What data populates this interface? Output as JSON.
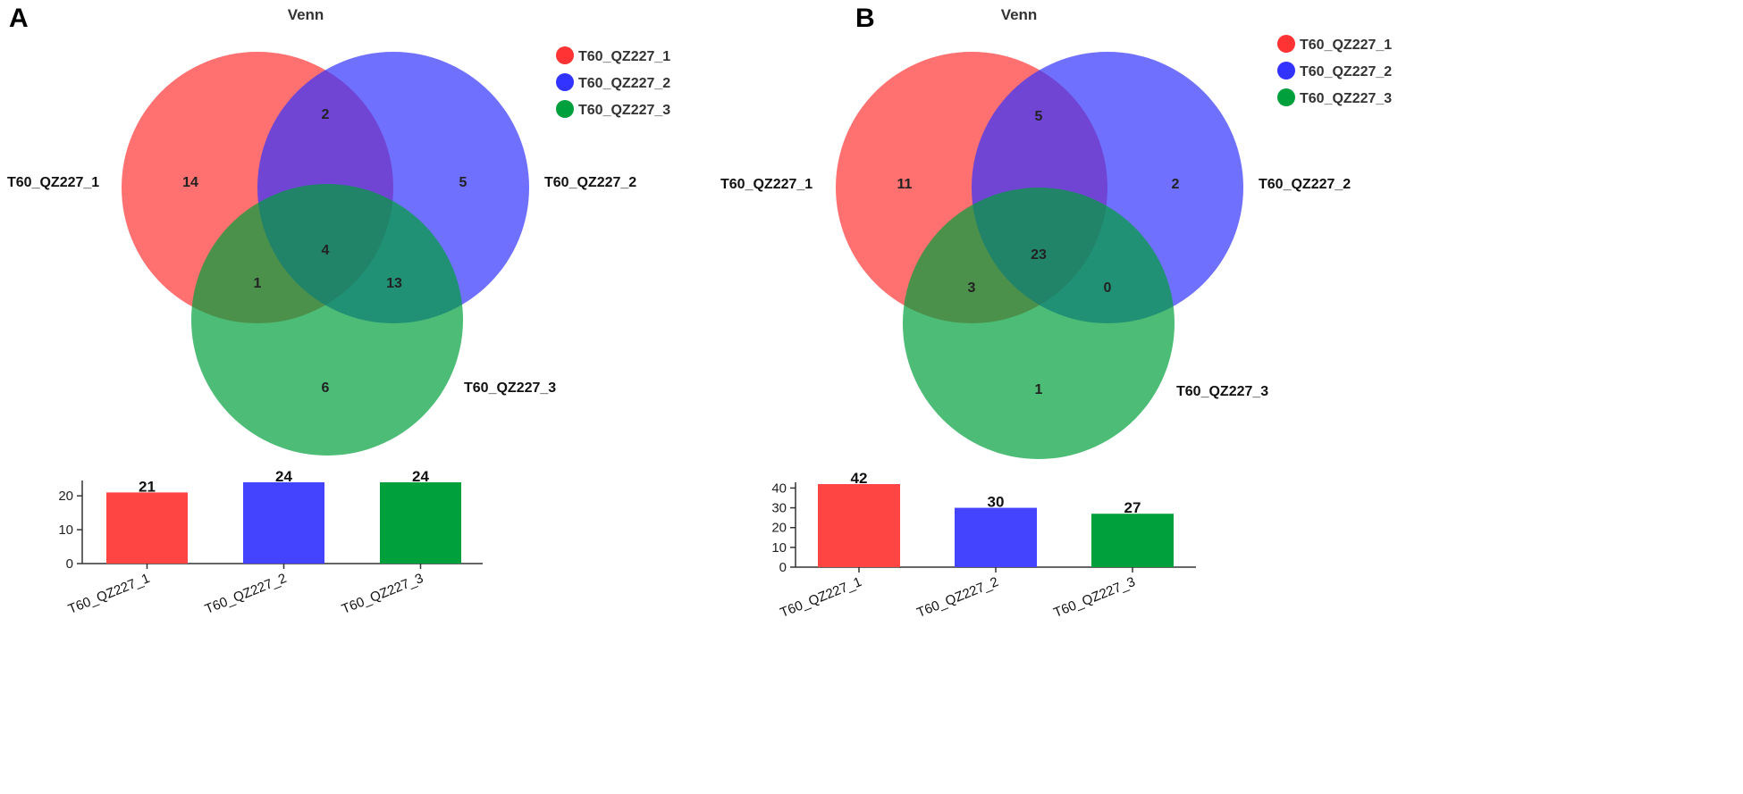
{
  "chart_data": [
    {
      "type": "venn",
      "panel": "A",
      "title": "Venn",
      "sets": [
        {
          "name": "T60_QZ227_1",
          "color": "#ff3333"
        },
        {
          "name": "T60_QZ227_2",
          "color": "#3333ff"
        },
        {
          "name": "T60_QZ227_3",
          "color": "#00a03c"
        }
      ],
      "regions": {
        "only_1": "14",
        "only_2": "5",
        "only_3": "6",
        "1_2": "2",
        "1_3": "1",
        "2_3": "13",
        "1_2_3": "4"
      },
      "bar": {
        "type": "bar",
        "categories": [
          "T60_QZ227_1",
          "T60_QZ227_2",
          "T60_QZ227_3"
        ],
        "values": [
          21,
          24,
          24
        ],
        "value_labels": [
          "21",
          "24",
          "24"
        ],
        "ylim": [
          0,
          24
        ],
        "yticks": [
          0,
          10,
          20
        ],
        "ytick_labels": [
          "0",
          "10",
          "20"
        ],
        "colors": [
          "#ff4444",
          "#4444ff",
          "#00a03c"
        ]
      }
    },
    {
      "type": "venn",
      "panel": "B",
      "title": "Venn",
      "sets": [
        {
          "name": "T60_QZ227_1",
          "color": "#ff3333"
        },
        {
          "name": "T60_QZ227_2",
          "color": "#3333ff"
        },
        {
          "name": "T60_QZ227_3",
          "color": "#00a03c"
        }
      ],
      "regions": {
        "only_1": "11",
        "only_2": "2",
        "only_3": "1",
        "1_2": "5",
        "1_3": "3",
        "2_3": "0",
        "1_2_3": "23"
      },
      "bar": {
        "type": "bar",
        "categories": [
          "T60_QZ227_1",
          "T60_QZ227_2",
          "T60_QZ227_3"
        ],
        "values": [
          42,
          30,
          27
        ],
        "value_labels": [
          "42",
          "30",
          "27"
        ],
        "ylim": [
          0,
          42
        ],
        "yticks": [
          0,
          10,
          20,
          30,
          40
        ],
        "ytick_labels": [
          "0",
          "10",
          "20",
          "30",
          "40"
        ],
        "colors": [
          "#ff4444",
          "#4444ff",
          "#00a03c"
        ]
      }
    }
  ]
}
